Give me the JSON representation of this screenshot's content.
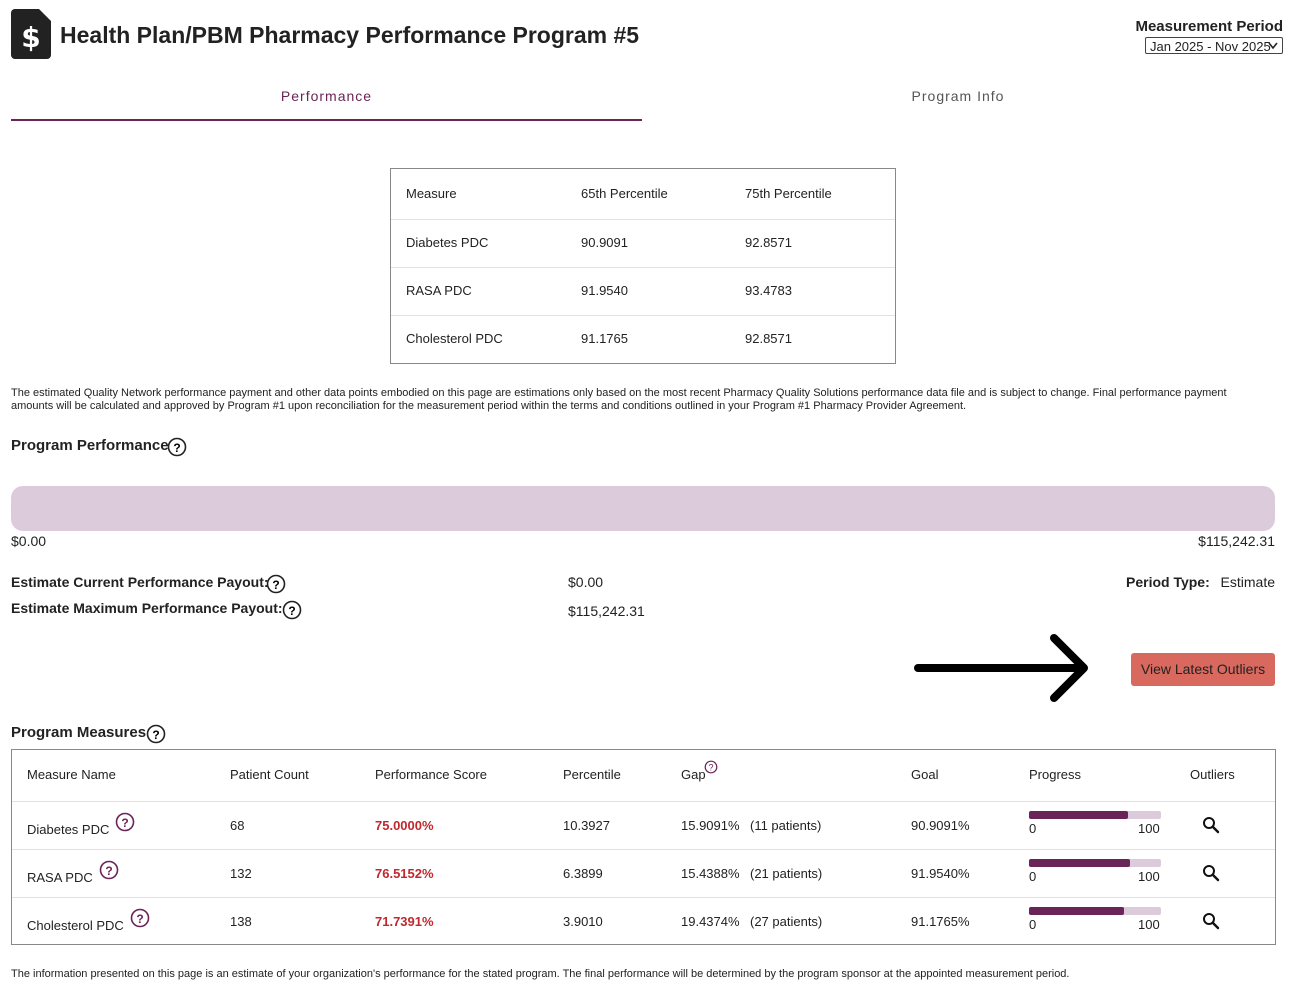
{
  "header": {
    "title": "Health Plan/PBM Pharmacy Performance Program #5",
    "measurement_period_label": "Measurement Period",
    "measurement_period": "Jan 2025 - Nov 2025"
  },
  "tabs": [
    "Performance",
    "Program Info"
  ],
  "percentile_table": {
    "columns": [
      "Measure",
      "65th Percentile",
      "75th Percentile"
    ],
    "rows": [
      [
        "Diabetes PDC",
        "90.9091",
        "92.8571"
      ],
      [
        "RASA PDC",
        "91.9540",
        "93.4783"
      ],
      [
        "Cholesterol PDC",
        "91.1765",
        "92.8571"
      ]
    ]
  },
  "disclaimer": "The estimated Quality Network performance payment and other data points embodied on this page are estimations only based on the most recent Pharmacy Quality Solutions performance data file and is subject to change. Final performance payment amounts will be calculated and approved by Program #1 upon reconciliation for the measurement period within the terms and conditions outlined in your Program #1 Pharmacy Provider Agreement.",
  "program_performance": {
    "title": "Program Performance",
    "scale_min": {
      "value": 0,
      "label": "$0.00"
    },
    "scale_max": {
      "value": 115242.31,
      "label": "$115,242.31"
    },
    "current_label": "Estimate Current Performance Payout:",
    "current": {
      "value": 0,
      "label": "$0.00"
    },
    "maximum_label": "Estimate Maximum Performance Payout:",
    "maximum": {
      "value": 115242.31,
      "label": "$115,242.31"
    },
    "period_type_label": "Period Type:",
    "period_type": "Estimate"
  },
  "button": "View Latest Outliers",
  "measures": {
    "title": "Program Measures",
    "columns": [
      "Measure Name",
      "Patient Count",
      "Performance Score",
      "Percentile",
      "Gap",
      "Goal",
      "Progress",
      "Outliers"
    ],
    "progress_scale": [
      0,
      100
    ],
    "rows": [
      {
        "name": "Diabetes PDC",
        "patient_count": 68,
        "score": {
          "value": 75,
          "label": "75.0000%"
        },
        "percentile": "10.3927",
        "gap": "15.9091%",
        "gap_patients": "(11 patients)",
        "goal": "90.9091%"
      },
      {
        "name": "RASA PDC",
        "patient_count": 132,
        "score": {
          "value": 76.5152,
          "label": "76.5152%"
        },
        "percentile": "6.3899",
        "gap": "15.4388%",
        "gap_patients": "(21 patients)",
        "goal": "91.9540%"
      },
      {
        "name": "Cholesterol PDC",
        "patient_count": 138,
        "score": {
          "value": 71.7391,
          "label": "71.7391%"
        },
        "percentile": "3.9010",
        "gap": "19.4374%",
        "gap_patients": "(27 patients)",
        "goal": "91.1765%"
      }
    ]
  },
  "footer": "The information presented on this page is an estimate of your organization's performance for the stated program. The final performance will be determined by the program sponsor at the appointed measurement period."
}
